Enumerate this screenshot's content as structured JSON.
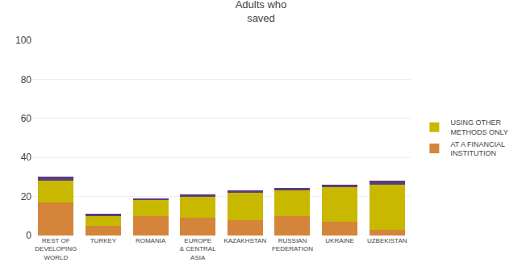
{
  "chart_data": {
    "type": "bar",
    "title": "Adults who\nsaved",
    "categories": [
      "REST OF\nDEVELOPING\nWORLD",
      "TURKEY",
      "ROMANIA",
      "EUROPE\n& CENTRAL\nASIA",
      "KAZAKHSTAN",
      "RUSSIAN\nFEDERATION",
      "UKRAINE",
      "UZBEKISTAN"
    ],
    "series": [
      {
        "name": "AT A FINANCIAL\nINSTITUTION",
        "color": "#d4853a",
        "values": [
          17,
          5,
          10,
          9,
          8,
          10,
          7,
          3
        ]
      },
      {
        "name": "USING OTHER\nMETHODS ONLY",
        "color": "#c8b800",
        "values": [
          11,
          5,
          8,
          11,
          14,
          13,
          18,
          23
        ]
      },
      {
        "color": "#5b3d7d",
        "values": [
          2,
          1,
          1,
          1,
          1,
          1.5,
          1,
          2
        ]
      }
    ],
    "stacked": true,
    "ylim": [
      0,
      100
    ],
    "yticks": [
      0,
      20,
      40,
      60,
      80,
      100
    ],
    "grid": true,
    "legend": "right"
  }
}
